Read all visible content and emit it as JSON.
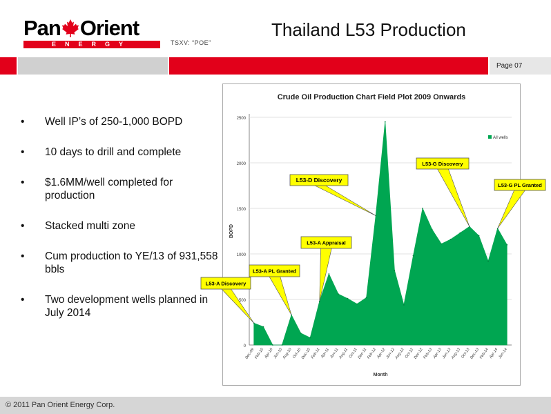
{
  "logo": {
    "word_left": "Pan",
    "word_right": "Orient",
    "subtitle": "ENERGY"
  },
  "ticker": "TSXV: “POE”",
  "title": "Thailand L53 Production",
  "page_label": "Page 07",
  "bullets": [
    "Well IP’s of 250-1,000 BOPD",
    "10 days to drill and complete",
    "$1.6MM/well completed for production",
    "Stacked multi zone",
    "Cum production to YE/13 of 931,558 bbls",
    "Two development wells planned in July 2014"
  ],
  "footer": "© 2011 Pan Orient Energy Corp.",
  "colors": {
    "brand_red": "#e2001a",
    "series_green": "#00a651",
    "callout_yellow": "#ffff00"
  },
  "chart_data": {
    "type": "area",
    "title": "Crude Oil Production Chart Field Plot 2009 Onwards",
    "xlabel": "Month",
    "ylabel": "BOPD",
    "ylim": [
      0,
      2500
    ],
    "yticks": [
      0,
      500,
      1000,
      1500,
      2000,
      2500
    ],
    "categories": [
      "Dec-09",
      "Feb-10",
      "Apr-10",
      "Jun-10",
      "Aug-10",
      "Oct-10",
      "Dec-10",
      "Feb-11",
      "Apr-11",
      "Jun-11",
      "Aug-11",
      "Oct-11",
      "Dec-11",
      "Feb-12",
      "Apr-12",
      "Jun-12",
      "Aug-12",
      "Oct-12",
      "Dec-12",
      "Feb-13",
      "Apr-13",
      "Jun-13",
      "Aug-13",
      "Oct-13",
      "Dec-13",
      "Feb-14",
      "Apr-14",
      "Jun-14"
    ],
    "legend": {
      "label": "All wells",
      "position": "top-right"
    },
    "series": [
      {
        "name": "All wells",
        "x": [
          0,
          1,
          2,
          3,
          4,
          5,
          6,
          7,
          8,
          9,
          10,
          11,
          12,
          13,
          14,
          15,
          16,
          17,
          18,
          19,
          20,
          21,
          22,
          23,
          24,
          25,
          26,
          27
        ],
        "values": [
          240,
          200,
          0,
          0,
          330,
          130,
          80,
          480,
          780,
          560,
          510,
          450,
          520,
          1420,
          2450,
          820,
          440,
          980,
          1500,
          1270,
          1110,
          1160,
          1230,
          1300,
          1200,
          920,
          1280,
          1100
        ]
      }
    ],
    "annotations": [
      {
        "text": "L53-A Discovery",
        "x": 0
      },
      {
        "text": "L53-A PL Granted",
        "x": 4
      },
      {
        "text": "L53-A Appraisal",
        "x": 7
      },
      {
        "text": "L53-D Discovery",
        "x": 13
      },
      {
        "text": "L53-G Discovery",
        "x": 23
      },
      {
        "text": "L53-G PL Granted",
        "x": 26
      }
    ]
  }
}
